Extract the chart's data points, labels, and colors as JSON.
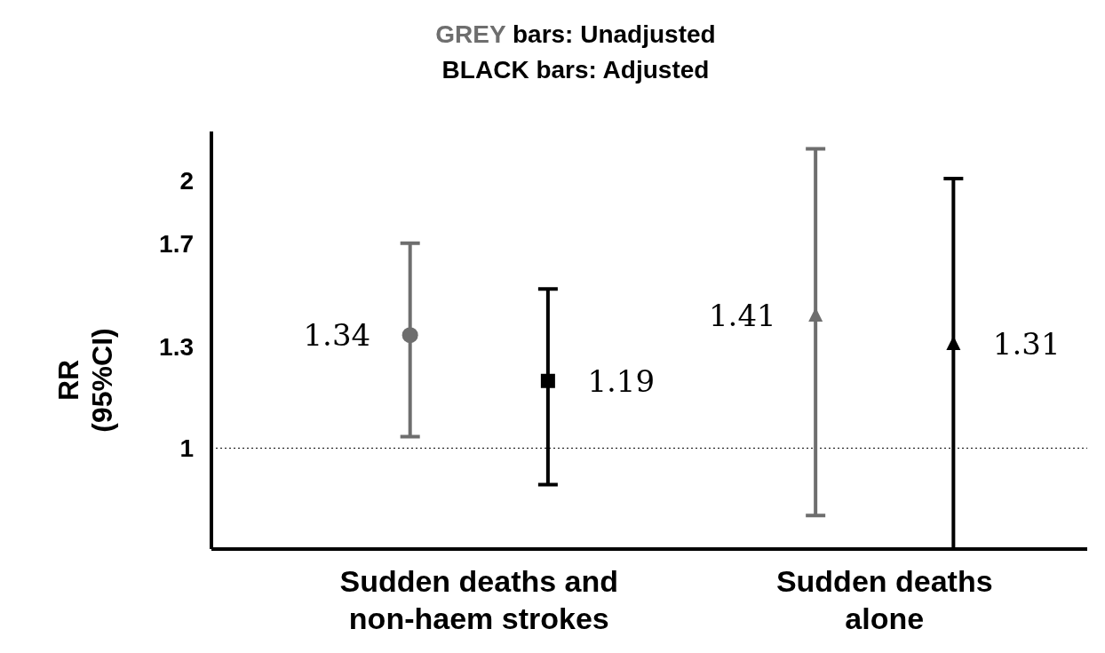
{
  "chart_data": {
    "type": "scatter",
    "title": "GREY bars: Unadjusted\nBLACK bars:  Adjusted",
    "ylabel": "RR\n(95%CI)",
    "categories": [
      "Sudden deaths and\nnon-haem strokes",
      "Sudden deaths\nalone"
    ],
    "series": [
      {
        "color": "#6e6e6e",
        "values": [
          1.34,
          1.41
        ],
        "errors": [
          [
            1.03,
            1.7
          ],
          [
            0.84,
            2.17
          ]
        ],
        "marker": [
          "circle",
          "triangle"
        ]
      },
      {
        "color": "#000000",
        "values": [
          1.19,
          1.31
        ],
        "errors": [
          [
            0.91,
            1.51
          ],
          [
            0.77,
            2.01
          ]
        ],
        "marker": [
          "square",
          "triangle"
        ]
      }
    ],
    "log": true,
    "ylim": [
      0.77,
      2.27
    ],
    "yticks": [
      1,
      1.3,
      1.7,
      2
    ],
    "ref_lines": [
      {
        "axis": "y",
        "value": 1,
        "line_style": "dotted"
      }
    ],
    "data_labels": true,
    "grid": false,
    "legend": false
  }
}
